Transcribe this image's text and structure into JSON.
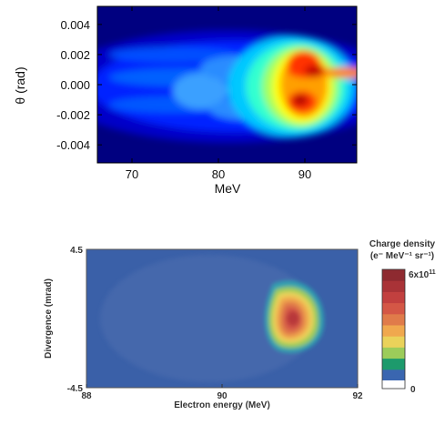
{
  "chart_data": [
    {
      "type": "heatmap",
      "xlabel": "MeV",
      "ylabel": "θ (rad)",
      "xlim": [
        66,
        96
      ],
      "ylim": [
        -0.0052,
        0.0052
      ],
      "x_ticks": [
        "70",
        "80",
        "90"
      ],
      "x_tick_values": [
        70,
        80,
        90
      ],
      "y_ticks": [
        "0.004",
        "0.002",
        "0.000",
        "-0.002",
        "-0.004"
      ],
      "y_tick_values": [
        0.004,
        0.002,
        0.0,
        -0.002,
        -0.004
      ],
      "colormap": "jet",
      "grid": false,
      "peak_region": {
        "x": [
          86,
          96
        ],
        "y": [
          -0.003,
          0.003
        ],
        "peak_x": 89
      }
    },
    {
      "type": "heatmap",
      "xlabel": "Electron energy (MeV)",
      "ylabel": "Divergence (mrad)",
      "xlim": [
        88,
        92
      ],
      "ylim": [
        -4.5,
        4.5
      ],
      "x_ticks": [
        "88",
        "90",
        "92"
      ],
      "x_tick_values": [
        88,
        90,
        92
      ],
      "y_ticks": [
        "4.5",
        "-4.5"
      ],
      "y_tick_values": [
        4.5,
        -4.5
      ],
      "colorbar": {
        "title_line1": "Charge density",
        "title_line2": "(e⁻ MeV⁻¹ sr⁻¹)",
        "max_label": "6x10",
        "max_exponent": "11",
        "min_label": "0",
        "colors": [
          "#3a66b0",
          "#1d9a6c",
          "#9ccc5a",
          "#ead25a",
          "#f0a84e",
          "#e07b4a",
          "#d45746",
          "#c2403f",
          "#a93337",
          "#8e2a30"
        ]
      },
      "peak_region": {
        "x": [
          90.7,
          91.5
        ],
        "y": [
          -1.0,
          2.8
        ],
        "peak_x": 91.1
      }
    }
  ]
}
